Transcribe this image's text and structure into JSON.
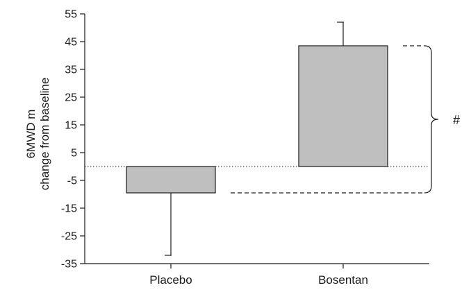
{
  "chart_data": {
    "type": "bar",
    "categories": [
      "Placebo",
      "Bosentan"
    ],
    "values": [
      -9.5,
      43.5
    ],
    "error_upper": [
      null,
      52
    ],
    "error_lower": [
      -32,
      null
    ],
    "ylabel_lines": [
      "6MWD m",
      "change from baseline"
    ],
    "yticks": [
      "55",
      "45",
      "35",
      "25",
      "15",
      "5",
      "-5",
      "-15",
      "-25",
      "-35"
    ],
    "ylim": [
      -35,
      55
    ],
    "zero_line": "dotted",
    "annotation": "#",
    "bar_color": "#bfbfbf",
    "grid": false,
    "legend": "none"
  }
}
